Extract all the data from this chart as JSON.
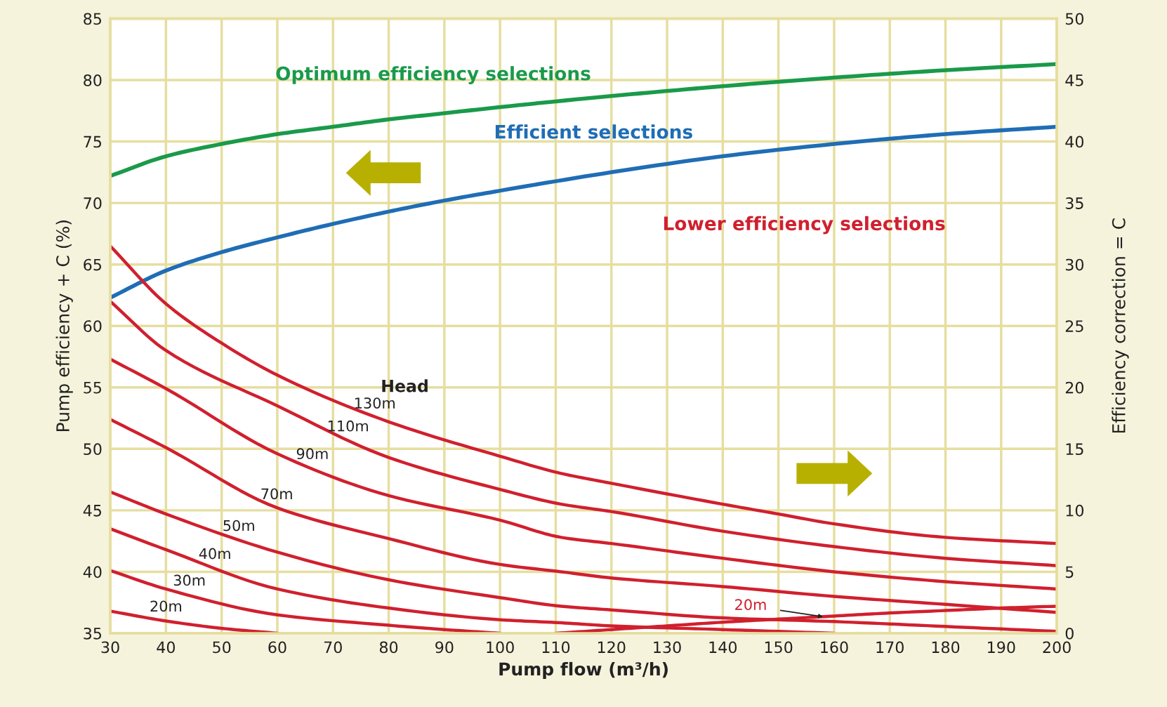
{
  "chart_data": {
    "type": "line",
    "xlabel": "Pump flow (m³/h)",
    "ylabel": "Pump efficiency + C (%)",
    "y2label": "Efficiency correction = C",
    "xlim": [
      30,
      200
    ],
    "xticks": [
      30,
      40,
      50,
      60,
      70,
      80,
      90,
      100,
      110,
      120,
      130,
      140,
      150,
      160,
      170,
      180,
      190,
      200
    ],
    "ylim": [
      35,
      85
    ],
    "yticks": [
      35,
      40,
      45,
      50,
      55,
      60,
      65,
      70,
      75,
      80,
      85
    ],
    "y2lim": [
      0,
      50
    ],
    "y2ticks": [
      0,
      5,
      10,
      15,
      20,
      25,
      30,
      35,
      40,
      45,
      50
    ],
    "grid": true,
    "annotations": [
      "Head",
      "Lower efficiency selections"
    ],
    "series": [
      {
        "name": "Optimum efficiency selections",
        "color": "#1a9a4a",
        "x": [
          30,
          40,
          50,
          60,
          70,
          80,
          90,
          100,
          120,
          140,
          160,
          180,
          200
        ],
        "values": [
          72.2,
          73.8,
          74.8,
          75.6,
          76.2,
          76.8,
          77.3,
          77.8,
          78.7,
          79.5,
          80.2,
          80.8,
          81.3
        ]
      },
      {
        "name": "Efficient selections",
        "color": "#1f6db5",
        "x": [
          30,
          40,
          50,
          60,
          70,
          80,
          90,
          100,
          120,
          140,
          160,
          180,
          200
        ],
        "values": [
          62.3,
          64.5,
          66.0,
          67.2,
          68.3,
          69.3,
          70.2,
          71.0,
          72.5,
          73.8,
          74.8,
          75.6,
          76.2
        ]
      },
      {
        "name": "130m",
        "color": "#d0202e",
        "axis": "y2",
        "x": [
          30,
          40,
          50,
          60,
          80,
          100,
          111,
          120,
          140,
          150,
          160,
          180,
          200
        ],
        "values": [
          31.5,
          26.8,
          23.6,
          21.0,
          17.2,
          14.4,
          13.0,
          12.2,
          10.5,
          9.7,
          8.9,
          7.8,
          7.3
        ]
      },
      {
        "name": "110m",
        "color": "#d0202e",
        "axis": "y2",
        "x": [
          30,
          40,
          60,
          80,
          100,
          111,
          120,
          140,
          160,
          180,
          200
        ],
        "values": [
          27.0,
          23.0,
          18.5,
          14.3,
          11.7,
          10.5,
          9.9,
          8.3,
          7.05,
          6.1,
          5.5
        ]
      },
      {
        "name": "90m",
        "color": "#d0202e",
        "axis": "y2",
        "x": [
          30,
          40,
          60,
          80,
          100,
          111,
          120,
          140,
          160,
          180,
          200
        ],
        "values": [
          22.3,
          19.9,
          14.6,
          11.2,
          9.2,
          7.8,
          7.3,
          6.1,
          5.0,
          4.2,
          3.6
        ]
      },
      {
        "name": "70m",
        "color": "#d0202e",
        "axis": "y2",
        "x": [
          30,
          40,
          60,
          80,
          100,
          111,
          120,
          140,
          160,
          180,
          200
        ],
        "values": [
          17.4,
          15.1,
          10.2,
          7.7,
          5.6,
          5.0,
          4.5,
          3.8,
          3.0,
          2.35,
          1.7
        ]
      },
      {
        "name": "50m",
        "color": "#d0202e",
        "axis": "y2",
        "x": [
          30,
          40,
          60,
          80,
          100,
          111,
          120,
          140,
          160,
          180,
          200
        ],
        "values": [
          11.5,
          9.7,
          6.6,
          4.35,
          2.9,
          2.2,
          1.9,
          1.25,
          0.95,
          0.55,
          0.15
        ]
      },
      {
        "name": "40m",
        "color": "#d0202e",
        "axis": "y2",
        "x": [
          30,
          40,
          60,
          80,
          100,
          111,
          120,
          140,
          160
        ],
        "values": [
          8.5,
          6.8,
          3.6,
          2.05,
          1.1,
          0.85,
          0.6,
          0.3,
          0
        ]
      },
      {
        "name": "30m",
        "color": "#d0202e",
        "axis": "y2",
        "x": [
          30,
          40,
          60,
          80,
          90,
          100
        ],
        "values": [
          5.1,
          3.6,
          1.5,
          0.65,
          0.3,
          0
        ]
      },
      {
        "name": "20m",
        "color": "#d0202e",
        "axis": "y2",
        "x": [
          30,
          40,
          50,
          60
        ],
        "values": [
          1.8,
          1.0,
          0.4,
          0
        ]
      },
      {
        "name": "20m",
        "color": "#d0202e",
        "axis": "y2",
        "x": [
          110,
          120,
          130,
          140,
          150,
          160,
          170,
          180,
          190,
          200
        ],
        "values": [
          0,
          0.3,
          0.6,
          0.9,
          1.15,
          1.4,
          1.65,
          1.85,
          2.05,
          2.2
        ]
      }
    ]
  }
}
